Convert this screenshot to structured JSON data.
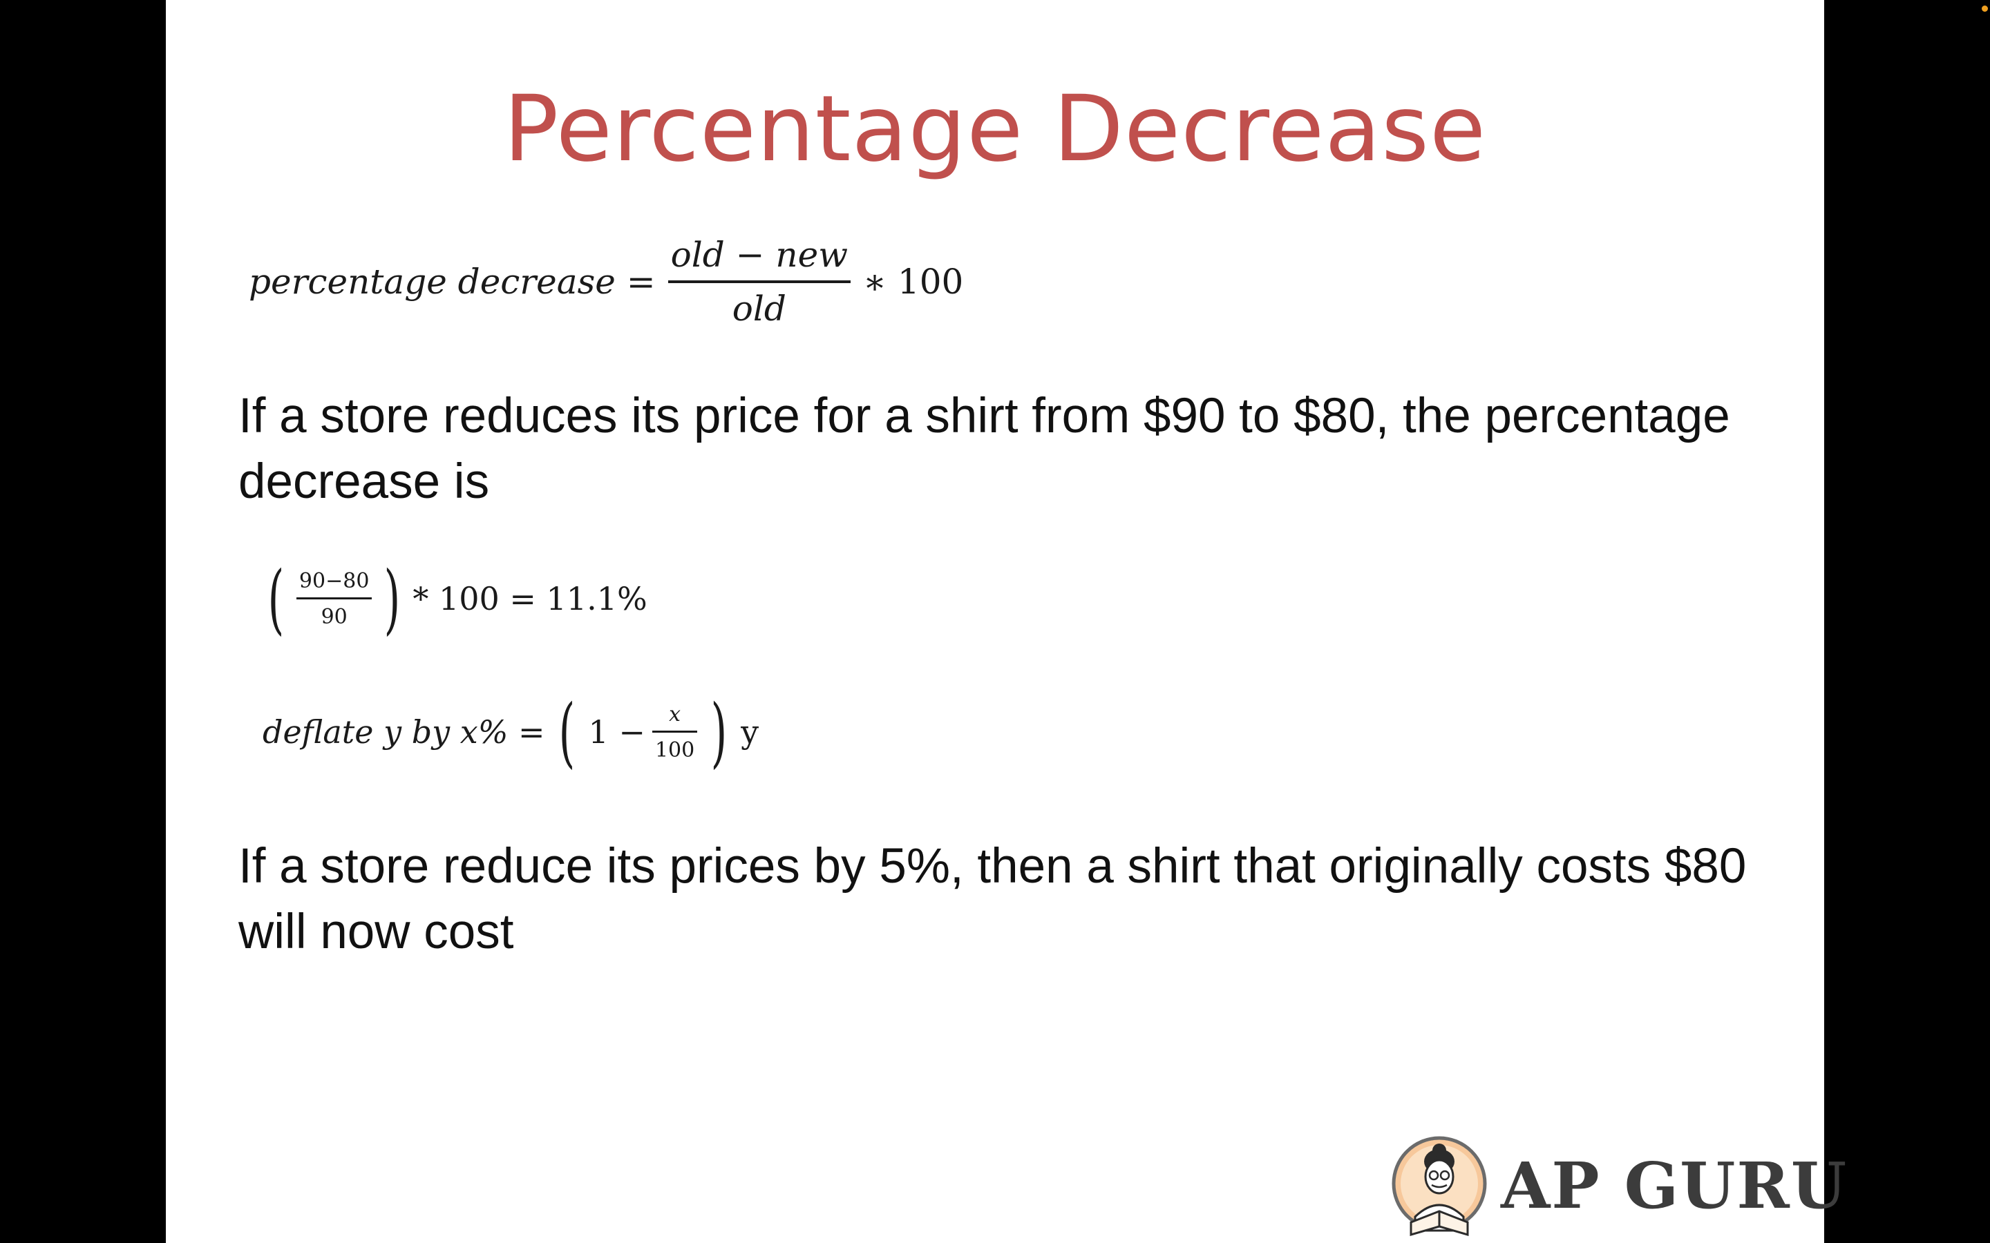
{
  "slide": {
    "title": "Percentage Decrease",
    "formula_percentage_decrease": {
      "lhs": "percentage decrease =",
      "numerator": "old − new",
      "denominator": "old",
      "rhs": "∗ 100"
    },
    "example1_text": "If a store reduces its price for a shirt from $90 to $80, the percentage decrease is",
    "example1_calc": {
      "numerator": "90−80",
      "denominator": "90",
      "rhs": "* 100 = 11.1%"
    },
    "formula_deflate": {
      "lhs": "deflate y by x% =",
      "one_minus": "1 −",
      "numerator": "x",
      "denominator": "100",
      "tail": "y"
    },
    "example2_text": "If a store reduce its prices by 5%, then a shirt that originally costs $80 will now cost"
  },
  "logo": {
    "text": "AP GURU",
    "icon": "reading-person-avatar-icon"
  },
  "colors": {
    "title": "#c0504d",
    "background": "#ffffff",
    "frame": "#000000"
  }
}
